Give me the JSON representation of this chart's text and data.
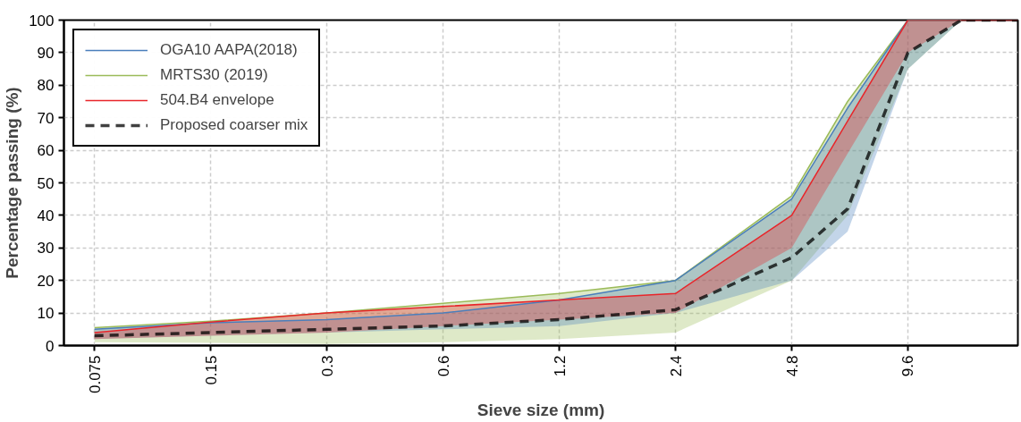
{
  "chart_data": {
    "type": "line",
    "xlabel": "Sieve size (mm)",
    "ylabel": "Percentage passing (%)",
    "xlim": [
      0.0625,
      18.5
    ],
    "ylim": [
      0,
      100
    ],
    "log": "x",
    "xticks": [
      0.075,
      0.15,
      0.3,
      0.6,
      1.2,
      2.4,
      4.8,
      9.6
    ],
    "yticks": [
      0,
      10,
      20,
      30,
      40,
      50,
      60,
      70,
      80,
      90,
      100
    ],
    "grid": true,
    "legend": "top left",
    "series": [
      {
        "name": "MRTS30 (2019)",
        "color": "#9bbb59",
        "x": [
          0.075,
          0.15,
          0.3,
          0.6,
          1.2,
          2.4,
          4.8,
          6.7,
          9.6,
          13.2
        ],
        "values": [
          5.5,
          7.5,
          10,
          13,
          16,
          20,
          46,
          75,
          100,
          100
        ],
        "lower": [
          1,
          0.8,
          0.5,
          1,
          2,
          4,
          20,
          40,
          85,
          100
        ],
        "upper": [
          5.5,
          7.5,
          10,
          13,
          16,
          20,
          46,
          75,
          100,
          100
        ]
      },
      {
        "name": "OGA10 AAPA(2018)",
        "color": "#4a7ebb",
        "x": [
          0.075,
          0.15,
          0.3,
          0.6,
          1.2,
          2.4,
          4.8,
          6.7,
          9.6,
          13.2
        ],
        "values": [
          5,
          7,
          8,
          10,
          14,
          20,
          45,
          73,
          100,
          100
        ],
        "lower": [
          2,
          3,
          4,
          5,
          6,
          10,
          20,
          35,
          85,
          100
        ],
        "upper": [
          5,
          7,
          8,
          10,
          14,
          20,
          45,
          73,
          100,
          100
        ]
      },
      {
        "name": "504.B4 envelope",
        "color": "#e8252a",
        "x": [
          0.075,
          0.15,
          0.3,
          0.6,
          1.2,
          2.4,
          4.8,
          6.7,
          9.6,
          13.2,
          18.5
        ],
        "values": [
          4,
          7.2,
          10,
          12,
          14,
          16,
          40,
          69,
          100,
          100,
          100
        ],
        "lower": [
          2,
          3,
          4,
          6,
          8,
          10,
          30,
          59,
          90,
          100,
          100
        ],
        "upper": [
          4,
          7.2,
          10,
          12,
          14,
          16,
          40,
          69,
          100,
          100,
          100
        ]
      },
      {
        "name": "Proposed coarser mix",
        "type": "line",
        "line_style": "dashed",
        "color": "#000000",
        "x": [
          0.075,
          0.15,
          0.3,
          0.6,
          1.2,
          2.4,
          4.8,
          6.7,
          9.6,
          13.2,
          18.5
        ],
        "values": [
          3,
          4,
          5,
          6,
          8,
          11,
          27,
          42,
          90,
          100,
          100
        ]
      }
    ]
  }
}
